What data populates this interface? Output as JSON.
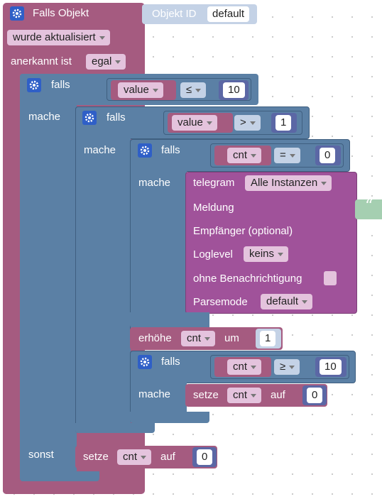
{
  "trigger": {
    "title": "Falls Objekt",
    "object_id_label": "Objekt ID",
    "object_id_value": "default",
    "event_option": "wurde aktualisiert",
    "ack_label": "anerkannt ist",
    "ack_option": "egal",
    "else_label": "sonst"
  },
  "if1": {
    "label": "falls",
    "do_label": "mache",
    "var": "value",
    "op": "≤",
    "num": "10"
  },
  "if2": {
    "label": "falls",
    "do_label": "mache",
    "var": "value",
    "op": ">",
    "num": "1"
  },
  "if3": {
    "label": "falls",
    "do_label": "mache",
    "var": "cnt",
    "op": "=",
    "num": "0"
  },
  "telegram": {
    "label": "telegram",
    "instance": "Alle Instanzen",
    "message_label": "Meldung",
    "message_quote": "“",
    "recipient_label": "Empfänger (optional)",
    "loglevel_label": "Loglevel",
    "loglevel_value": "keins",
    "silent_label": "ohne Benachrichtigung",
    "parsemode_label": "Parsemode",
    "parsemode_value": "default"
  },
  "increment": {
    "label": "erhöhe",
    "var": "cnt",
    "by_label": "um",
    "num": "1"
  },
  "if4": {
    "label": "falls",
    "do_label": "mache",
    "var": "cnt",
    "op": "≥",
    "num": "10"
  },
  "set1": {
    "label": "setze",
    "var": "cnt",
    "to_label": "auf",
    "num": "0"
  },
  "set2": {
    "label": "setze",
    "var": "cnt",
    "to_label": "auf",
    "num": "0"
  },
  "colors": {
    "trigger": "#a55b80",
    "logic": "#5b80a5",
    "variable": "#a55b80",
    "math": "#5b67a5",
    "telegram": "#a0529a",
    "text": "#a5cfb1",
    "dropdown_bg": "#e4c3dd",
    "dropdown_blue": "#c4d2e6"
  }
}
